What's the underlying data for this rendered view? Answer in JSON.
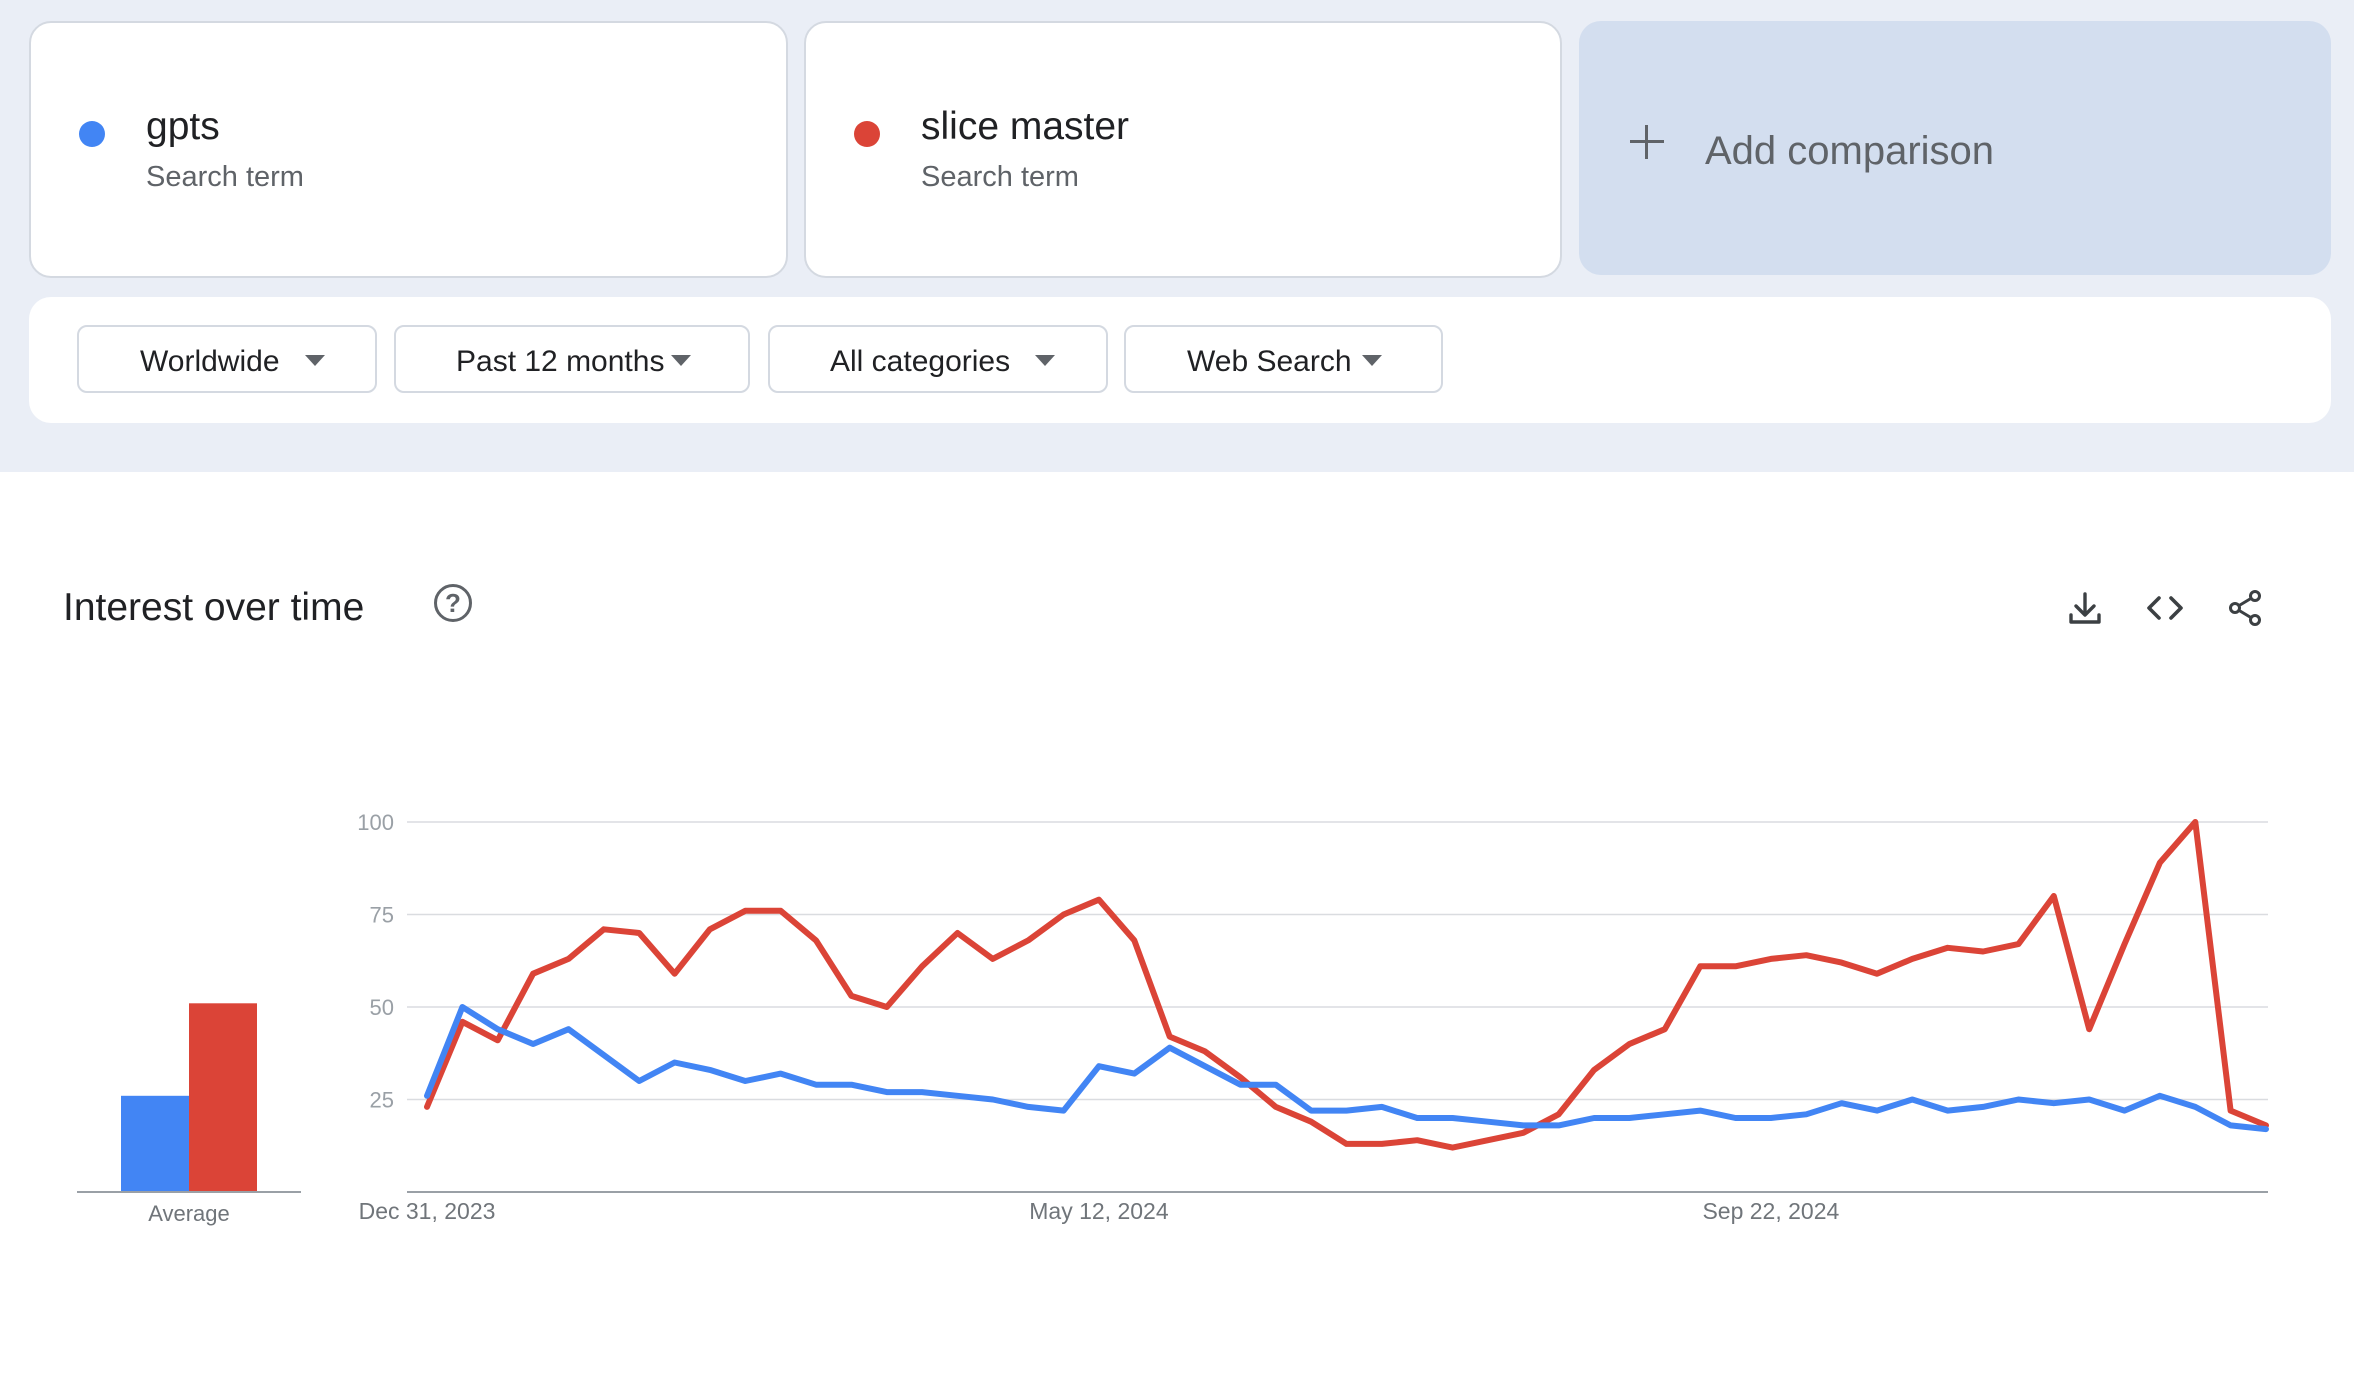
{
  "terms": [
    {
      "name": "gpts",
      "type": "Search term",
      "color": "#4285f4"
    },
    {
      "name": "slice master",
      "type": "Search term",
      "color": "#db4437"
    }
  ],
  "add_comparison_label": "Add comparison",
  "filters": {
    "region": "Worldwide",
    "time": "Past 12 months",
    "category": "All categories",
    "property": "Web Search"
  },
  "chart_card": {
    "title": "Interest over time",
    "help_icon": "help-circle-icon",
    "tools": [
      "download-icon",
      "embed-code-icon",
      "share-icon"
    ]
  },
  "chart_data": [
    {
      "type": "bar",
      "categories": [
        "Average"
      ],
      "series": [
        {
          "name": "gpts",
          "values": [
            26
          ],
          "color": "#4285f4"
        },
        {
          "name": "slice master",
          "values": [
            51
          ],
          "color": "#db4437"
        }
      ],
      "ylim": [
        0,
        100
      ]
    },
    {
      "type": "line",
      "x_labels": [
        "Dec 31, 2023",
        "May 12, 2024",
        "Sep 22, 2024"
      ],
      "y_ticks": [
        100,
        75,
        50,
        25
      ],
      "ylim": [
        0,
        100
      ],
      "grid": true,
      "series": [
        {
          "name": "gpts",
          "color": "#4285f4",
          "values": [
            26,
            50,
            44,
            40,
            44,
            37,
            30,
            35,
            33,
            30,
            32,
            29,
            29,
            27,
            27,
            26,
            25,
            23,
            22,
            34,
            32,
            39,
            34,
            29,
            29,
            22,
            22,
            23,
            20,
            20,
            19,
            18,
            18,
            20,
            20,
            21,
            22,
            20,
            20,
            21,
            24,
            22,
            25,
            22,
            23,
            25,
            24,
            25,
            22,
            26,
            23,
            18,
            17
          ]
        },
        {
          "name": "slice master",
          "color": "#db4437",
          "values": [
            23,
            46,
            41,
            59,
            63,
            71,
            70,
            59,
            71,
            76,
            76,
            68,
            53,
            50,
            61,
            70,
            63,
            68,
            75,
            79,
            68,
            42,
            38,
            31,
            23,
            19,
            13,
            13,
            14,
            12,
            14,
            16,
            21,
            33,
            40,
            44,
            61,
            61,
            63,
            64,
            62,
            59,
            63,
            66,
            65,
            67,
            80,
            44,
            67,
            89,
            100,
            22,
            18
          ]
        }
      ]
    }
  ]
}
